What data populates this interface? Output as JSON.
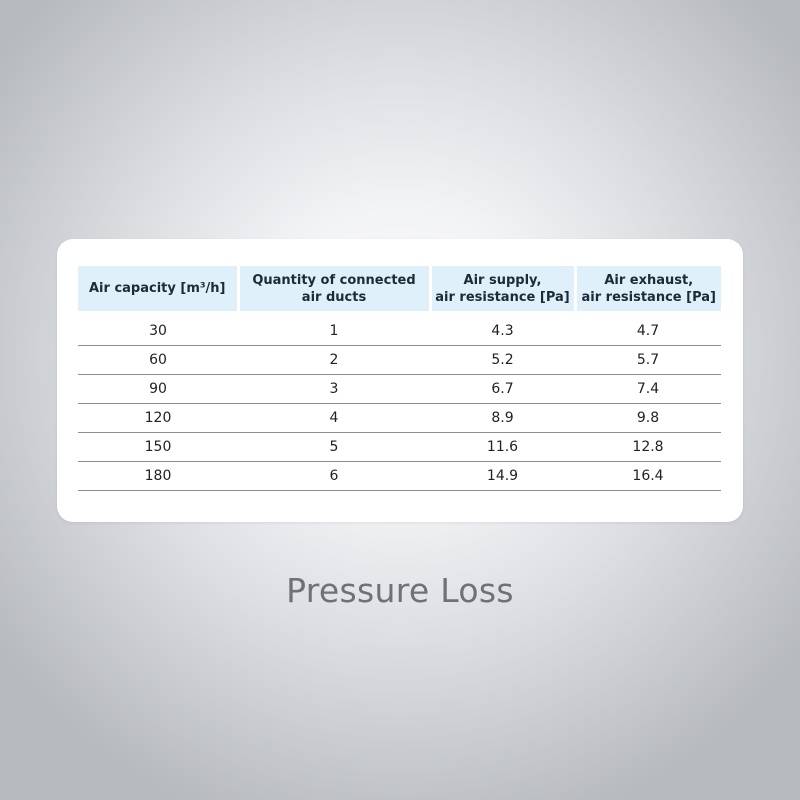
{
  "table": {
    "headers": [
      "Air capacity [m³/h]",
      "Quantity of connected\nair ducts",
      "Air supply,\nair resistance [Pa]",
      "Air exhaust,\nair resistance [Pa]"
    ],
    "rows": [
      [
        "30",
        "1",
        "4.3",
        "4.7"
      ],
      [
        "60",
        "2",
        "5.2",
        "5.7"
      ],
      [
        "90",
        "3",
        "6.7",
        "7.4"
      ],
      [
        "120",
        "4",
        "8.9",
        "9.8"
      ],
      [
        "150",
        "5",
        "11.6",
        "12.8"
      ],
      [
        "180",
        "6",
        "14.9",
        "16.4"
      ]
    ]
  },
  "caption": "Pressure Loss",
  "colors": {
    "header_background": "#dff0fa",
    "caption_text": "#6e7176",
    "card_background": "#ffffff"
  }
}
